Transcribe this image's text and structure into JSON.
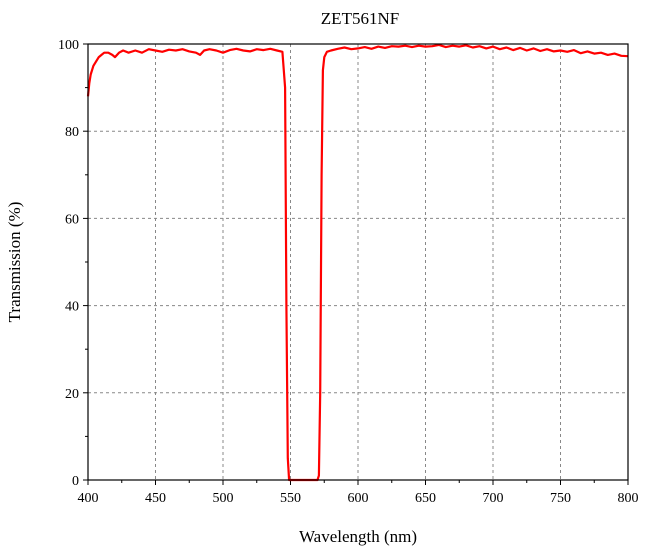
{
  "chart_data": {
    "type": "line",
    "title": "ZET561NF",
    "xlabel": "Wavelength (nm)",
    "ylabel": "Transmission (%)",
    "xlim": [
      400,
      800
    ],
    "ylim": [
      0,
      100
    ],
    "xticks": [
      400,
      450,
      500,
      550,
      600,
      650,
      700,
      750,
      800
    ],
    "yticks": [
      0,
      20,
      40,
      60,
      80,
      100
    ],
    "grid": true,
    "legend": "none",
    "series": [
      {
        "color": "#ff0000",
        "x": [
          400,
          401,
          402,
          404,
          406,
          408,
          410,
          412,
          415,
          418,
          420,
          423,
          426,
          430,
          435,
          440,
          445,
          450,
          455,
          460,
          465,
          470,
          475,
          480,
          483,
          486,
          490,
          495,
          500,
          505,
          510,
          515,
          520,
          525,
          530,
          535,
          540,
          544,
          546,
          547,
          548,
          549,
          550,
          555,
          560,
          565,
          570,
          571,
          572,
          573,
          574,
          575,
          577,
          580,
          585,
          590,
          595,
          600,
          605,
          610,
          615,
          620,
          625,
          630,
          635,
          640,
          645,
          650,
          655,
          660,
          665,
          670,
          675,
          680,
          685,
          690,
          695,
          700,
          705,
          710,
          715,
          720,
          725,
          730,
          735,
          740,
          745,
          750,
          755,
          760,
          765,
          770,
          775,
          780,
          785,
          790,
          795,
          800
        ],
        "y": [
          88,
          91,
          93,
          95,
          96,
          97,
          97.5,
          98,
          98,
          97.5,
          97,
          98,
          98.5,
          98,
          98.5,
          98,
          98.8,
          98.5,
          98.2,
          98.7,
          98.5,
          98.8,
          98.3,
          98,
          97.5,
          98.5,
          98.8,
          98.5,
          98,
          98.6,
          98.9,
          98.5,
          98.3,
          98.8,
          98.6,
          98.9,
          98.5,
          98.2,
          90,
          40,
          5,
          0,
          0,
          0,
          0,
          0,
          0,
          1,
          20,
          70,
          94,
          97,
          98.2,
          98.5,
          98.9,
          99.2,
          98.8,
          99,
          99.3,
          98.9,
          99.4,
          99.1,
          99.5,
          99.4,
          99.6,
          99.3,
          99.6,
          99.4,
          99.5,
          99.8,
          99.3,
          99.6,
          99.4,
          99.7,
          99.2,
          99.5,
          99,
          99.4,
          98.8,
          99.2,
          98.6,
          99.1,
          98.5,
          99,
          98.4,
          98.8,
          98.3,
          98.5,
          98.2,
          98.6,
          97.9,
          98.3,
          97.8,
          98,
          97.5,
          97.8,
          97.3,
          97.2
        ]
      }
    ]
  }
}
